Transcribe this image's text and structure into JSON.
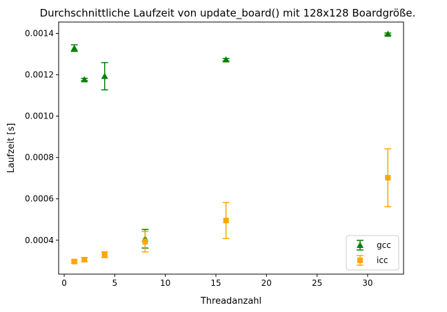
{
  "chart_data": {
    "type": "scatter",
    "title": "Durchschnittliche Laufzeit von update_board() mit 128x128 Boardgröße.",
    "xlabel": "Threadanzahl",
    "ylabel": "Laufzeit [s]",
    "xlim": [
      -0.55,
      33.55
    ],
    "ylim": [
      0.000236,
      0.001455
    ],
    "xticks": [
      0,
      5,
      10,
      15,
      20,
      25,
      30
    ],
    "xtick_labels": [
      "0",
      "5",
      "10",
      "15",
      "20",
      "25",
      "30"
    ],
    "yticks": [
      0.0004,
      0.0006,
      0.0008,
      0.001,
      0.0012,
      0.0014
    ],
    "ytick_labels": [
      "0.0004",
      "0.0006",
      "0.0008",
      "0.0010",
      "0.0012",
      "0.0014"
    ],
    "grid": false,
    "legend_position": "lower right",
    "series": [
      {
        "name": "gcc",
        "color": "#008000",
        "marker": "triangle",
        "x": [
          1,
          2,
          4,
          8,
          16,
          32
        ],
        "y": [
          0.001329,
          0.001177,
          0.001193,
          0.000407,
          0.001273,
          0.001397
        ],
        "yerr": [
          1.6e-05,
          6e-06,
          6.6e-05,
          4.5e-05,
          6e-06,
          5e-06
        ]
      },
      {
        "name": "icc",
        "color": "#FFA500",
        "marker": "square",
        "x": [
          1,
          2,
          4,
          8,
          16,
          32
        ],
        "y": [
          0.000297,
          0.000306,
          0.00033,
          0.000393,
          0.000495,
          0.000702
        ],
        "yerr": [
          7e-06,
          1e-05,
          1.4e-05,
          5e-05,
          8.7e-05,
          0.00014
        ]
      }
    ]
  }
}
